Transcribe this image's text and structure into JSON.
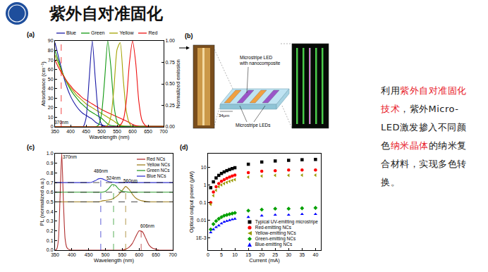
{
  "header": {
    "title": "紫外自对准固化"
  },
  "chart_data": [
    {
      "type": "line",
      "label": "(a)",
      "xlabel": "Wavelength (nm)",
      "ylabel": "Absorbance (cm⁻¹)",
      "y2label": "Normalized emission",
      "x": [
        350,
        360,
        370,
        380,
        390,
        400,
        410,
        420,
        430,
        440,
        450,
        460,
        470,
        480,
        490,
        500,
        510,
        520,
        530,
        540,
        550,
        560,
        570,
        580,
        590,
        600,
        610,
        620,
        630,
        640,
        650,
        660,
        670,
        680,
        690,
        700
      ],
      "xlim": [
        350,
        700
      ],
      "xticks": [
        350,
        400,
        450,
        500,
        550,
        600,
        650,
        700
      ],
      "ylim": [
        0,
        90
      ],
      "yticks": [
        0,
        10,
        20,
        30,
        40,
        50,
        60,
        70,
        80,
        90
      ],
      "y2lim": [
        0,
        1
      ],
      "y2ticks": [
        {
          "value": 0,
          "label": "0.00"
        },
        {
          "value": 0.25,
          "label": "0.25"
        },
        {
          "value": 0.5,
          "label": "0.50"
        },
        {
          "value": 0.75,
          "label": "0.75"
        },
        {
          "value": 1,
          "label": "1.00"
        }
      ],
      "grid": false,
      "legend": "top",
      "series": [
        {
          "name": "Blue",
          "color": "#1a1aa6",
          "values": [
            88,
            75,
            62,
            50,
            40,
            32,
            26,
            21,
            17,
            14,
            12,
            10,
            8,
            5,
            3,
            2,
            1,
            0.5,
            0.5,
            0.5,
            0.5,
            0.5,
            0.5,
            0.5,
            0.5,
            0.5,
            0.5,
            0.5,
            0.5,
            0.5,
            0.5,
            0.5,
            0.5,
            0.5,
            0.5,
            0.5
          ]
        },
        {
          "name": "Green",
          "color": "#119911",
          "values": [
            80,
            70,
            60,
            52,
            45,
            39,
            34,
            30,
            26,
            23,
            20,
            17,
            15,
            13,
            11,
            9,
            6,
            3,
            1.5,
            1,
            0.5,
            0.5,
            0.5,
            0.5,
            0.5,
            0.5,
            0.5,
            0.5,
            0.5,
            0.5,
            0.5,
            0.5,
            0.5,
            0.5,
            0.5,
            0.5
          ]
        },
        {
          "name": "Yellow",
          "color": "#a3a300",
          "values": [
            75,
            67,
            59,
            52,
            46,
            41,
            37,
            33,
            30,
            27,
            24,
            22,
            20,
            18,
            16,
            14,
            12,
            10,
            8,
            6,
            3.5,
            2,
            1,
            0.7,
            0.5,
            0.5,
            0.5,
            0.5,
            0.5,
            0.5,
            0.5,
            0.5,
            0.5,
            0.5,
            0.5,
            0.5
          ]
        },
        {
          "name": "Red",
          "color": "#ee1111",
          "values": [
            70,
            63,
            57,
            52,
            47,
            43,
            39,
            36,
            33,
            30,
            28,
            26,
            24,
            22,
            20,
            18,
            16.5,
            15,
            13.5,
            12,
            10.5,
            9,
            7.5,
            6,
            4.5,
            2.5,
            1.2,
            0.7,
            0.5,
            0.5,
            0.5,
            0.5,
            0.5,
            0.5,
            0.5,
            0.5
          ]
        },
        {
          "name": "Blue",
          "color": "#1a1aa6",
          "axis": "y2",
          "values": [
            0,
            0,
            0,
            0,
            0,
            0,
            0,
            0,
            0,
            0,
            0.1,
            0.55,
            1,
            0.55,
            0.15,
            0.03,
            0,
            0,
            0,
            0,
            0,
            0,
            0,
            0,
            0,
            0,
            0,
            0,
            0,
            0,
            0,
            0,
            0,
            0,
            0,
            0
          ]
        },
        {
          "name": "Green",
          "color": "#119911",
          "axis": "y2",
          "values": [
            0,
            0,
            0,
            0,
            0,
            0,
            0,
            0,
            0,
            0,
            0,
            0,
            0,
            0,
            0.02,
            0.15,
            0.55,
            1,
            0.7,
            0.25,
            0.06,
            0.01,
            0,
            0,
            0,
            0,
            0,
            0,
            0,
            0,
            0,
            0,
            0,
            0,
            0,
            0
          ]
        },
        {
          "name": "Yellow",
          "color": "#a3a300",
          "axis": "y2",
          "values": [
            0,
            0,
            0,
            0,
            0,
            0,
            0,
            0,
            0,
            0,
            0,
            0,
            0,
            0,
            0,
            0,
            0,
            0.02,
            0.12,
            0.45,
            0.9,
            0.98,
            0.55,
            0.18,
            0.04,
            0,
            0,
            0,
            0,
            0,
            0,
            0,
            0,
            0,
            0,
            0
          ]
        },
        {
          "name": "Red",
          "color": "#ee1111",
          "axis": "y2",
          "values": [
            0,
            0,
            0,
            0,
            0,
            0,
            0,
            0,
            0,
            0,
            0,
            0,
            0,
            0,
            0,
            0,
            0,
            0,
            0,
            0,
            0,
            0.02,
            0.08,
            0.3,
            0.75,
            1,
            0.75,
            0.3,
            0.08,
            0.02,
            0,
            0,
            0,
            0,
            0,
            0
          ]
        }
      ],
      "annotations": [
        {
          "text": "370nm",
          "x": 370,
          "y": 5
        }
      ],
      "vlines": [
        {
          "x": 370,
          "color": "#ee1111"
        }
      ]
    },
    {
      "type": "line",
      "label": "(c)",
      "xlabel": "Wavelength (nm)",
      "ylabel": "PL (normalized a.u.)",
      "x": [
        350,
        355,
        360,
        365,
        370,
        375,
        380,
        385,
        390,
        400,
        410,
        420,
        430,
        440,
        450,
        460,
        470,
        480,
        490,
        500,
        510,
        520,
        530,
        540,
        550,
        560,
        570,
        580,
        590,
        600,
        610,
        620,
        630,
        640,
        650,
        660,
        670,
        680,
        690,
        700
      ],
      "xlim": [
        350,
        700
      ],
      "xticks": [
        350,
        400,
        450,
        500,
        550,
        600,
        650,
        700
      ],
      "ylim": [
        0,
        1
      ],
      "yticks": [
        {
          "value": 0,
          "label": "0.0"
        },
        0.1,
        0.2,
        0.3,
        0.4,
        0.5,
        0.6,
        0.7,
        0.8,
        0.9,
        {
          "value": 1,
          "label": "1.0"
        }
      ],
      "grid": false,
      "legend": "top right",
      "series": [
        {
          "name": "Red NCs",
          "color": "#b03030",
          "values": [
            0,
            0.01,
            0.1,
            0.55,
            1,
            0.5,
            0.12,
            0.03,
            0.01,
            0,
            0,
            0,
            0,
            0,
            0,
            0,
            0,
            0,
            0,
            0,
            0,
            0,
            0,
            0,
            0,
            0.01,
            0.03,
            0.07,
            0.14,
            0.2,
            0.19,
            0.12,
            0.05,
            0.02,
            0.01,
            0,
            0,
            0,
            0,
            0
          ]
        },
        {
          "name": "Yellow NCs",
          "color": "#a08020",
          "values": [
            0.5,
            0.5,
            0.5,
            0.5,
            0.5,
            0.5,
            0.5,
            0.5,
            0.5,
            0.5,
            0.5,
            0.5,
            0.5,
            0.5,
            0.5,
            0.5,
            0.5,
            0.5,
            0.51,
            0.515,
            0.52,
            0.53,
            0.55,
            0.58,
            0.62,
            0.66,
            0.63,
            0.58,
            0.54,
            0.52,
            0.51,
            0.505,
            0.5,
            0.5,
            0.5,
            0.5,
            0.5,
            0.5,
            0.5,
            0.5
          ]
        },
        {
          "name": "Green NCs",
          "color": "#2e9a2e",
          "values": [
            0.6,
            0.6,
            0.6,
            0.6,
            0.6,
            0.6,
            0.6,
            0.6,
            0.6,
            0.6,
            0.6,
            0.6,
            0.6,
            0.6,
            0.6,
            0.6,
            0.6,
            0.6,
            0.6,
            0.61,
            0.64,
            0.68,
            0.67,
            0.63,
            0.61,
            0.605,
            0.6,
            0.6,
            0.6,
            0.6,
            0.6,
            0.6,
            0.6,
            0.6,
            0.6,
            0.6,
            0.6,
            0.6,
            0.6,
            0.6
          ]
        },
        {
          "name": "Blue NCs",
          "color": "#3333cc",
          "values": [
            0.7,
            0.7,
            0.7,
            0.7,
            0.7,
            0.7,
            0.7,
            0.7,
            0.7,
            0.7,
            0.7,
            0.7,
            0.7,
            0.7,
            0.7,
            0.705,
            0.72,
            0.74,
            0.74,
            0.725,
            0.71,
            0.705,
            0.7,
            0.7,
            0.7,
            0.7,
            0.7,
            0.7,
            0.7,
            0.7,
            0.7,
            0.7,
            0.7,
            0.7,
            0.7,
            0.7,
            0.7,
            0.7,
            0.7,
            0.7
          ]
        }
      ],
      "annotations": [
        {
          "text": "370nm",
          "x": 395,
          "y": 0.97
        },
        {
          "text": "486nm",
          "x": 486,
          "y": 0.82
        },
        {
          "text": "524nm",
          "x": 524,
          "y": 0.75
        },
        {
          "text": "560nm",
          "x": 575,
          "y": 0.72
        },
        {
          "text": "606nm",
          "x": 625,
          "y": 0.25
        }
      ],
      "vlines": [
        {
          "x": 486,
          "ymax": 0.74,
          "color": "#3333cc"
        },
        {
          "x": 524,
          "ymax": 0.68,
          "color": "#2e9a2e"
        },
        {
          "x": 560,
          "ymax": 0.66,
          "color": "#a08020"
        },
        {
          "x": 606,
          "ymax": 0.2,
          "color": "#b03030"
        }
      ],
      "hlines": [
        0.5,
        0.6,
        0.7
      ]
    },
    {
      "type": "scatter",
      "label": "(d)",
      "xlabel": "Current (mA)",
      "ylabel": "Optical output power (μW)",
      "log": "y",
      "x": [
        1,
        2,
        3,
        4,
        5,
        6,
        7,
        8,
        9,
        10,
        15,
        20,
        25,
        30,
        35,
        40
      ],
      "xlim": [
        0,
        42
      ],
      "xticks": [
        0,
        5,
        10,
        15,
        20,
        25,
        30,
        35,
        40
      ],
      "ylim": [
        0.0002,
        60
      ],
      "yticks": [
        {
          "value": 0.001,
          "label": "1E-3"
        },
        0.01,
        0.1,
        1,
        10
      ],
      "grid": false,
      "legend": "bottom right",
      "series": [
        {
          "name": "Typical UV-emitting microstripe",
          "color": "#000000",
          "marker": "square",
          "values": [
            0.7,
            1.5,
            2.5,
            3.5,
            4.5,
            5.5,
            6.5,
            7.5,
            8.5,
            9.5,
            15,
            20,
            23,
            25,
            27,
            28
          ]
        },
        {
          "name": "Red-emitting NCs",
          "color": "#ff0000",
          "marker": "circle",
          "values": [
            0.1,
            0.4,
            0.8,
            1.2,
            1.6,
            2,
            2.4,
            2.8,
            3.2,
            3.6,
            5,
            6,
            6.5,
            7,
            7,
            7
          ]
        },
        {
          "name": "Yellow-emitting NCs",
          "color": "#999900",
          "marker": "triangle-left",
          "values": [
            0.08,
            0.25,
            0.5,
            0.8,
            1,
            1.2,
            1.4,
            1.6,
            1.8,
            2,
            2.8,
            3.2,
            3.5,
            3.5,
            3.6,
            3.6
          ]
        },
        {
          "name": "Green-emitting NCs",
          "color": "#00a000",
          "marker": "diamond",
          "values": [
            0.003,
            0.006,
            0.009,
            0.012,
            0.015,
            0.018,
            0.02,
            0.022,
            0.024,
            0.026,
            0.035,
            0.04,
            0.045,
            0.045,
            0.048,
            0.05
          ]
        },
        {
          "name": "Blue-emitting NCs",
          "color": "#0000ff",
          "marker": "triangle-up",
          "values": [
            0.002,
            0.003,
            0.004,
            0.005,
            0.0065,
            0.008,
            0.009,
            0.01,
            0.011,
            0.012,
            0.015,
            0.018,
            0.02,
            0.02,
            0.022,
            0.022
          ]
        }
      ]
    }
  ],
  "diagram": {
    "label": "(b)",
    "annotation_top": [
      "Microstripe LED",
      "with nanocomposite"
    ],
    "annotation_bottom": "Microstripe LEDs",
    "scale": "34μm"
  },
  "paragraph": [
    {
      "text": "利用",
      "color": "#222222"
    },
    {
      "text": "紫外自对准固化技术",
      "color": "#e8202a"
    },
    {
      "text": "，紫外Micro-LED激发掺入不同颜色",
      "color": "#222222"
    },
    {
      "text": "纳米晶体",
      "color": "#e8202a"
    },
    {
      "text": "的纳米复合材料，实现多色转换。",
      "color": "#222222"
    }
  ]
}
